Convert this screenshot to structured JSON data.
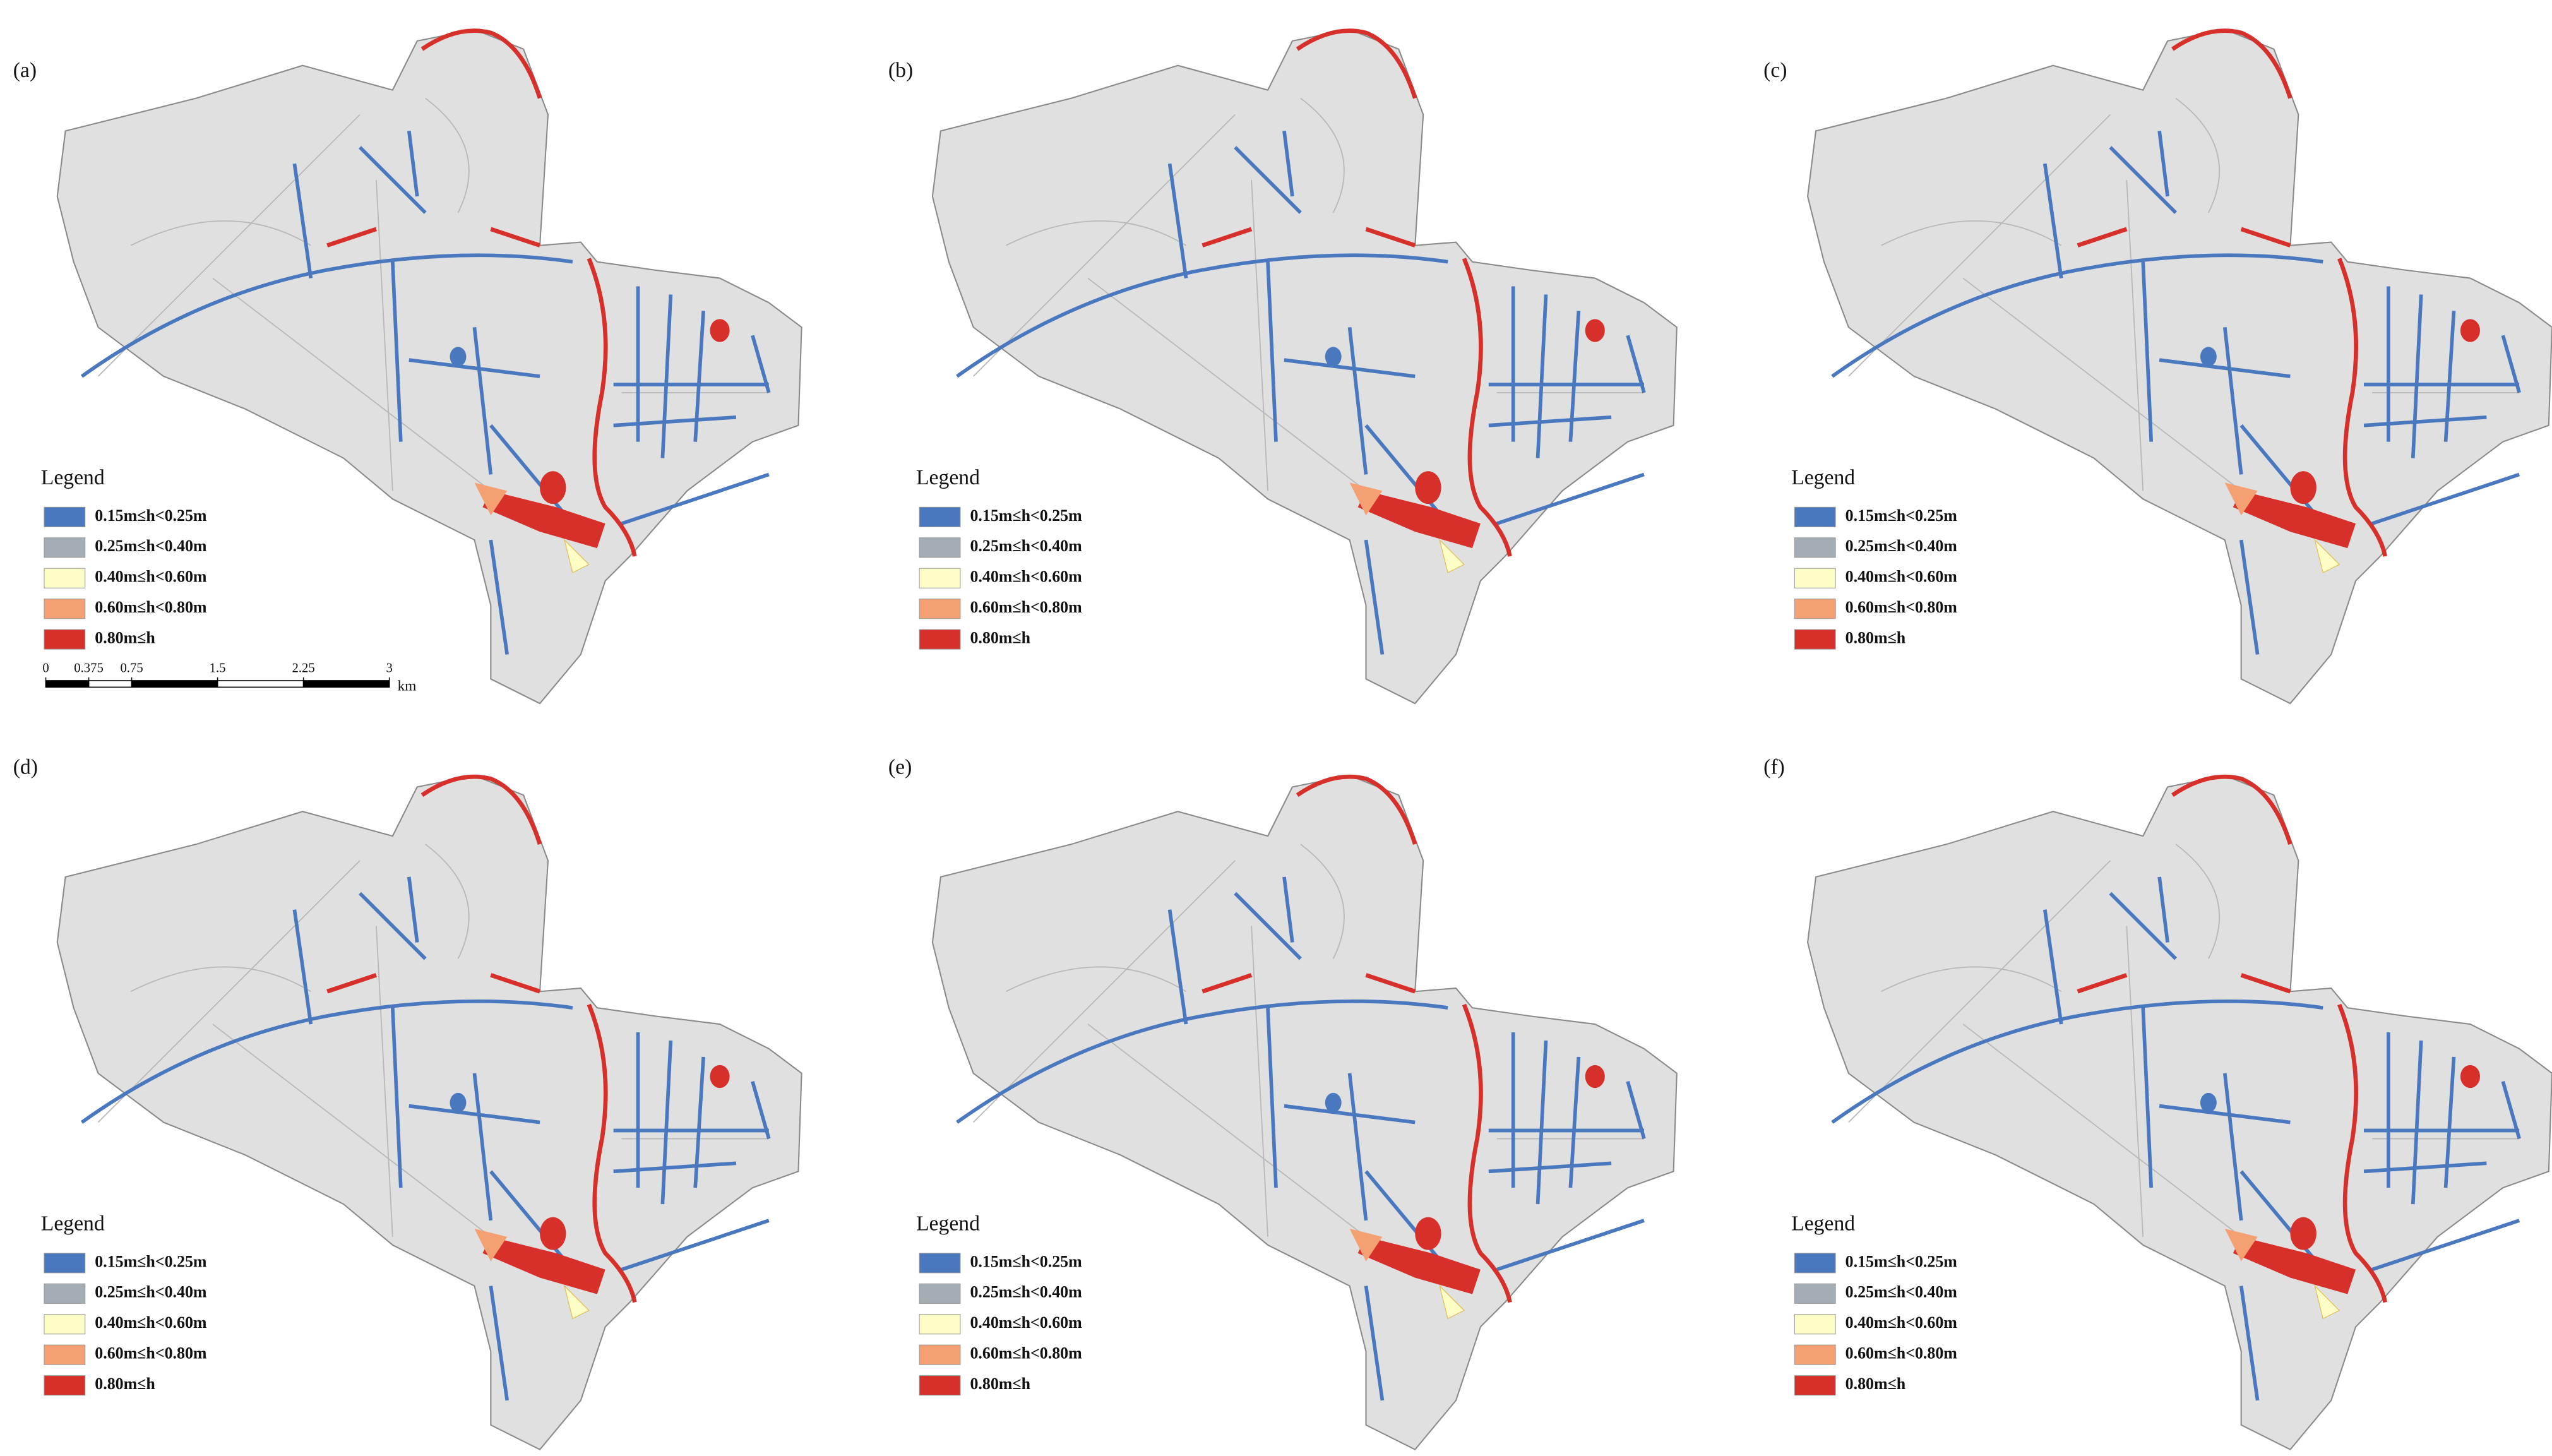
{
  "panels": [
    {
      "label": "(a)"
    },
    {
      "label": "(b)"
    },
    {
      "label": "(c)"
    },
    {
      "label": "(d)"
    },
    {
      "label": "(e)"
    },
    {
      "label": "(f)"
    }
  ],
  "legend": {
    "title": "Legend",
    "items": [
      {
        "label": "0.15m≤h<0.25m",
        "color": "#4a78bf"
      },
      {
        "label": "0.25m≤h<0.40m",
        "color": "#a3adb3"
      },
      {
        "label": "0.40m≤h<0.60m",
        "color": "#fdfdc6"
      },
      {
        "label": "0.60m≤h<0.80m",
        "color": "#f4a072"
      },
      {
        "label": "0.80m≤h",
        "color": "#d7302a"
      }
    ]
  },
  "scale_bar": {
    "ticks": [
      0,
      0.375,
      0.75,
      1.5,
      2.25,
      3
    ],
    "unit": "km"
  }
}
